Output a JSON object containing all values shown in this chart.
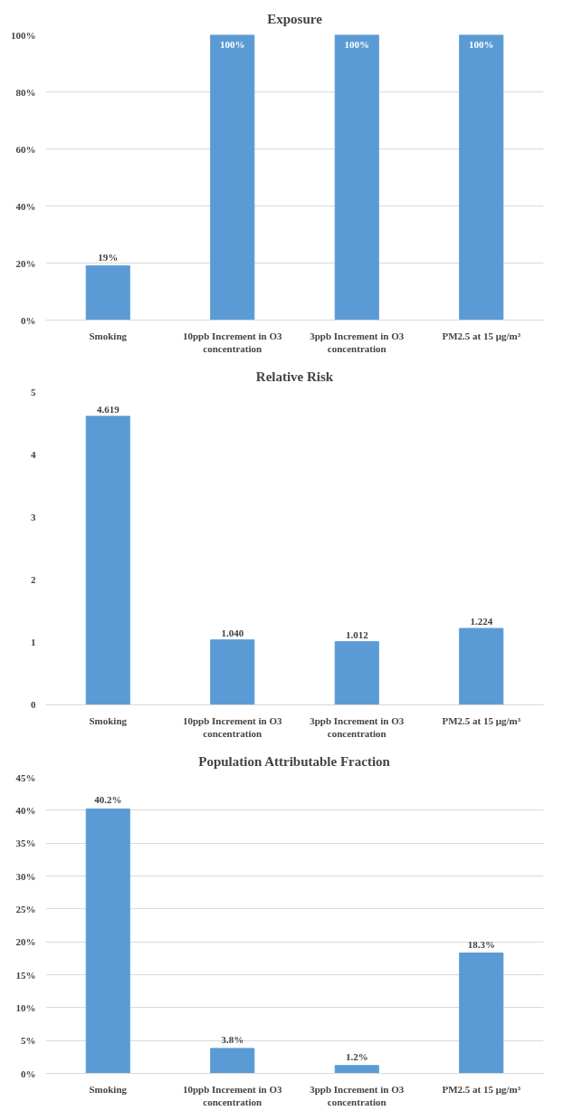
{
  "chart_data": [
    {
      "type": "bar",
      "title": "Exposure",
      "categories": [
        "Smoking",
        "10ppb Increment in O3\nconcentration",
        "3ppb Increment in O3\nconcentration",
        "PM2.5 at 15 μg/m³"
      ],
      "values": [
        19,
        100,
        100,
        100
      ],
      "value_labels": [
        "19%",
        "100%",
        "100%",
        "100%"
      ],
      "color": "#5b9bd5",
      "ylim": [
        0,
        100
      ],
      "yticks": [
        {
          "value": 0,
          "label": "0%"
        },
        {
          "value": 20,
          "label": "20%"
        },
        {
          "value": 40,
          "label": "40%"
        },
        {
          "value": 60,
          "label": "60%"
        },
        {
          "value": 80,
          "label": "80%"
        },
        {
          "value": 100,
          "label": "100%"
        }
      ],
      "grid": "y"
    },
    {
      "type": "bar",
      "title": "Relative Risk",
      "categories": [
        "Smoking",
        "10ppb Increment in O3\nconcentration",
        "3ppb Increment in O3\nconcentration",
        "PM2.5 at 15 μg/m³"
      ],
      "values": [
        4.619,
        1.04,
        1.012,
        1.224
      ],
      "value_labels": [
        "4.619",
        "1.040",
        "1.012",
        "1.224"
      ],
      "color": "#5b9bd5",
      "ylim": [
        0,
        5
      ],
      "yticks": [
        0,
        1,
        2,
        3,
        4,
        5
      ],
      "grid": false
    },
    {
      "type": "bar",
      "title": "Population Attributable Fraction",
      "categories": [
        "Smoking",
        "10ppb Increment in O3\nconcentration",
        "3ppb Increment in O3\nconcentration",
        "PM2.5 at 15 μg/m³"
      ],
      "values": [
        40.2,
        3.8,
        1.2,
        18.3
      ],
      "value_labels": [
        "40.2%",
        "3.8%",
        "1.2%",
        "18.3%"
      ],
      "color": "#5b9bd5",
      "ylim": [
        0,
        45
      ],
      "yticks": [
        {
          "value": 0,
          "label": "0%"
        },
        {
          "value": 5,
          "label": "5%"
        },
        {
          "value": 10,
          "label": "10%"
        },
        {
          "value": 15,
          "label": "15%"
        },
        {
          "value": 20,
          "label": "20%"
        },
        {
          "value": 25,
          "label": "25%"
        },
        {
          "value": 30,
          "label": "30%"
        },
        {
          "value": 35,
          "label": "35%"
        },
        {
          "value": 40,
          "label": "40%"
        },
        {
          "value": 45,
          "label": "45%"
        }
      ],
      "grid": "y"
    }
  ]
}
